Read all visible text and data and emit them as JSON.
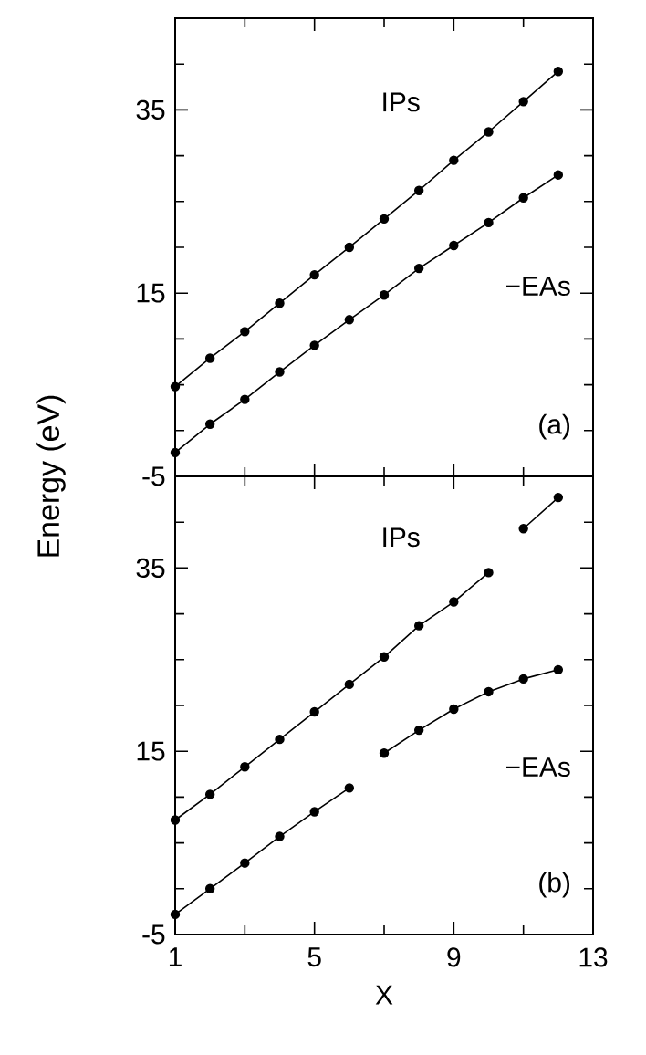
{
  "chart_data": [
    {
      "type": "line",
      "ylabel": "Energy (eV)",
      "annotations": [
        "(a)"
      ],
      "x": [
        1,
        2,
        3,
        4,
        5,
        6,
        7,
        8,
        9,
        10,
        11,
        12
      ],
      "marker": "circle",
      "tick_labels": "y",
      "grid": false,
      "xlim": [
        1,
        13
      ],
      "xticks": [
        1,
        {
          "value": 3,
          "label": null
        },
        5,
        {
          "value": 7,
          "label": null
        },
        9,
        {
          "value": 11,
          "label": null
        },
        13
      ],
      "ylim": [
        -5,
        45
      ],
      "yticks": [
        -5,
        {
          "value": 0,
          "label": null
        },
        {
          "value": 5,
          "label": null
        },
        {
          "value": 10,
          "label": null
        },
        15,
        {
          "value": 20,
          "label": null
        },
        {
          "value": 25,
          "label": null
        },
        {
          "value": 30,
          "label": null
        },
        35,
        {
          "value": 40,
          "label": null
        },
        {
          "value": 45,
          "label": null
        }
      ],
      "series": [
        {
          "name": "IPs",
          "color": "#000000",
          "values": [
            4.8,
            7.9,
            10.8,
            13.9,
            17.0,
            20.0,
            23.1,
            26.2,
            29.5,
            32.6,
            35.9,
            39.2
          ]
        },
        {
          "name": "−EAs",
          "color": "#000000",
          "values": [
            -2.4,
            0.7,
            3.4,
            6.4,
            9.3,
            12.1,
            14.8,
            17.7,
            20.2,
            22.7,
            25.4,
            27.9
          ]
        }
      ]
    },
    {
      "type": "line",
      "xlabel": "X",
      "annotations": [
        "(b)"
      ],
      "marker": "circle",
      "grid": false,
      "xlim": [
        1,
        13
      ],
      "xticks": [
        1,
        {
          "value": 3,
          "label": null
        },
        5,
        {
          "value": 7,
          "label": null
        },
        9,
        {
          "value": 11,
          "label": null
        },
        13
      ],
      "ylim": [
        -5,
        45
      ],
      "yticks": [
        -5,
        {
          "value": 0,
          "label": null
        },
        {
          "value": 5,
          "label": null
        },
        {
          "value": 10,
          "label": null
        },
        15,
        {
          "value": 20,
          "label": null
        },
        {
          "value": 25,
          "label": null
        },
        {
          "value": 30,
          "label": null
        },
        35,
        {
          "value": 40,
          "label": null
        },
        {
          "value": 45,
          "label": null
        }
      ],
      "series": [
        {
          "name": "IPs",
          "color": "#000000",
          "x": [
            1,
            2,
            3,
            4,
            5,
            6,
            7,
            8,
            9,
            10,
            10.5,
            11,
            12
          ],
          "values": [
            7.5,
            10.3,
            13.3,
            16.3,
            19.3,
            22.3,
            25.3,
            28.7,
            31.3,
            34.5,
            null,
            39.3,
            42.7
          ]
        },
        {
          "name": "−EAs",
          "color": "#000000",
          "x": [
            1,
            2,
            3,
            4,
            5,
            6,
            6.5,
            7,
            8,
            9,
            10,
            11,
            12
          ],
          "values": [
            -2.8,
            0.0,
            2.8,
            5.7,
            8.4,
            11.0,
            null,
            14.8,
            17.3,
            19.6,
            21.5,
            22.9,
            23.9
          ]
        }
      ]
    }
  ]
}
